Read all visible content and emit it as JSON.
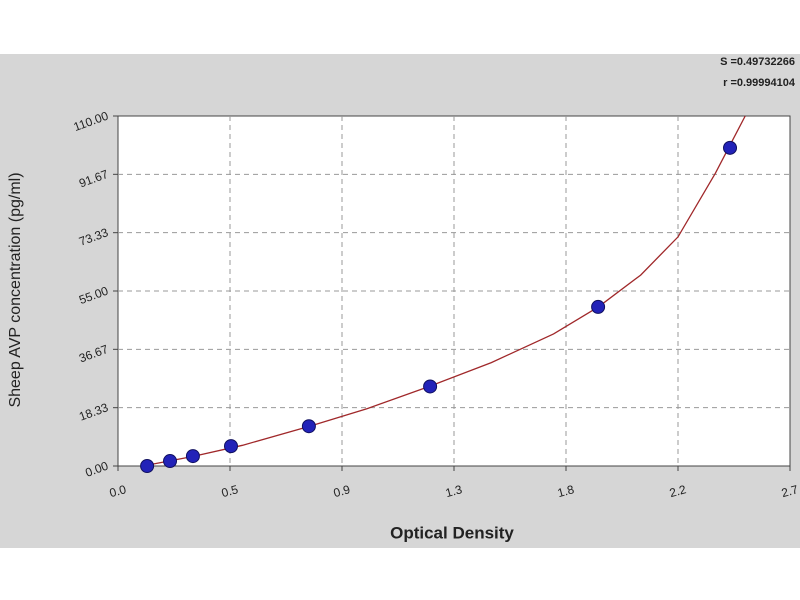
{
  "chart_data": {
    "type": "scatter",
    "xlabel": "Optical Density",
    "ylabel": "Sheep AVP concentration (pg/ml)",
    "annotations": [
      "S =0.49732266",
      "r =0.99994104"
    ],
    "xlim": [
      0,
      2.7
    ],
    "xticks": [
      {
        "value": 0,
        "label": "0.0"
      },
      {
        "value": 0.45,
        "label": "0.5"
      },
      {
        "value": 0.9,
        "label": "0.9"
      },
      {
        "value": 1.35,
        "label": "1.3"
      },
      {
        "value": 1.8,
        "label": "1.8"
      },
      {
        "value": 2.25,
        "label": "2.2"
      },
      {
        "value": 2.7,
        "label": "2.7"
      }
    ],
    "ylim": [
      0,
      110
    ],
    "yticks": [
      {
        "value": 0,
        "label": "0.00"
      },
      18.33,
      36.67,
      {
        "value": 55,
        "label": "55.00"
      },
      73.33,
      91.67,
      {
        "value": 110,
        "label": "110.00"
      }
    ],
    "grid": true,
    "points": {
      "color": "#2222b8",
      "x": [
        0.117,
        0.209,
        0.301,
        0.454,
        0.767,
        1.254,
        1.929,
        2.459
      ],
      "values": [
        0,
        1.56,
        3.12,
        6.25,
        12.5,
        25,
        50,
        100
      ]
    },
    "curve": {
      "color": "#a0282a",
      "x": [
        0.1,
        0.3,
        0.5,
        0.77,
        1.0,
        1.25,
        1.5,
        1.75,
        1.93,
        2.1,
        2.25,
        2.4,
        2.52
      ],
      "values": [
        0,
        3,
        6.5,
        12.5,
        18,
        25,
        32.5,
        41.5,
        50,
        60,
        72,
        92,
        110
      ]
    }
  }
}
